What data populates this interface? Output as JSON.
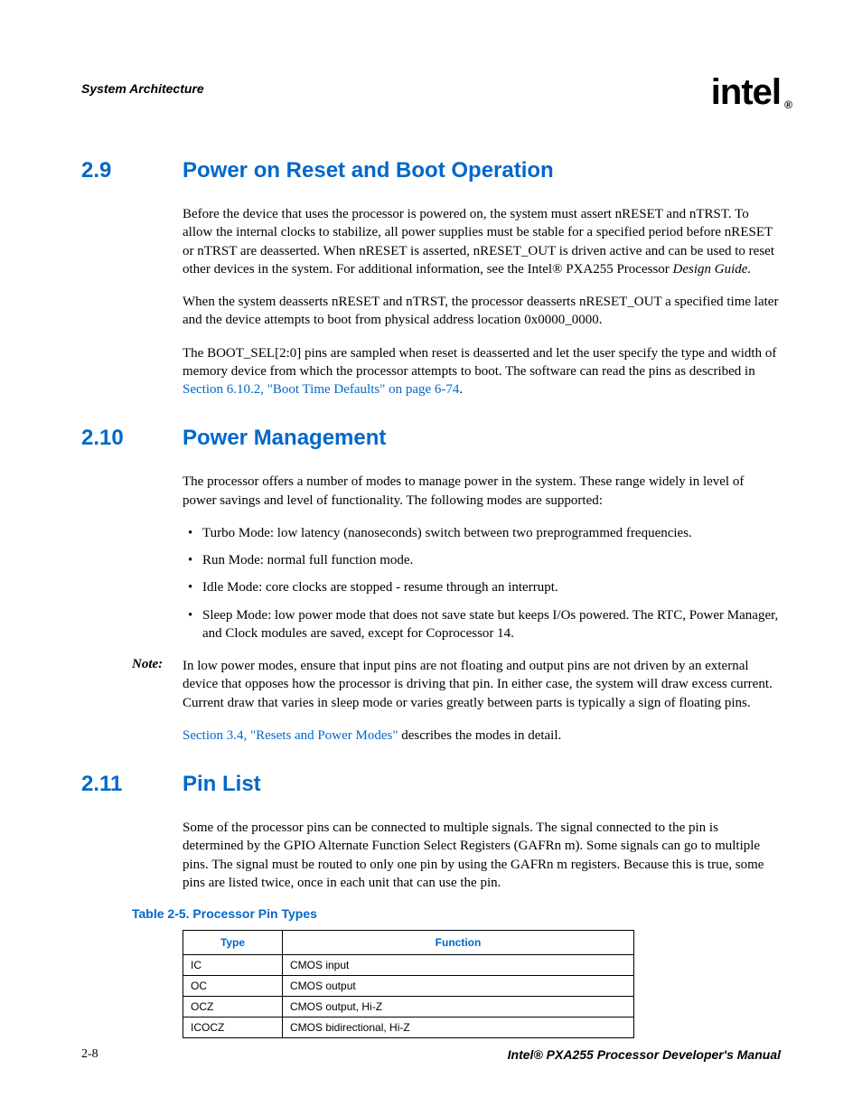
{
  "header": {
    "chapter": "System Architecture",
    "logo_text": "intel",
    "logo_reg": "®"
  },
  "colors": {
    "heading": "#0068c9",
    "text": "#000000",
    "bg": "#ffffff"
  },
  "sections": {
    "s29": {
      "num": "2.9",
      "title": "Power on Reset and Boot Operation",
      "p1a": "Before the device that uses the processor is powered on, the system must assert nRESET and nTRST. To allow the internal clocks to stabilize, all power supplies must be stable for a specified period before nRESET or nTRST are deasserted. When nRESET is asserted, nRESET_OUT is driven active and can be used to reset other devices in the system. For additional information, see the Intel® PXA255 Processor ",
      "p1b_italic": "Design Guide.",
      "p2": "When the system deasserts nRESET and nTRST, the processor deasserts nRESET_OUT a specified time later and the device attempts to boot from physical address location 0x0000_0000.",
      "p3a": "The BOOT_SEL[2:0] pins are sampled when reset is deasserted and let the user specify the type and width of memory device from which the processor attempts to boot. The software can read the pins as described in ",
      "p3_link": "Section 6.10.2, \"Boot Time Defaults\" on page 6-74",
      "p3b": "."
    },
    "s210": {
      "num": "2.10",
      "title": "Power Management",
      "p1": "The processor offers a number of modes to manage power in the system. These range widely in level of power savings and level of functionality. The following modes are supported:",
      "bullets": {
        "b1": "Turbo Mode: low latency (nanoseconds) switch between two preprogrammed frequencies.",
        "b2": "Run Mode: normal full function mode.",
        "b3": "Idle Mode: core clocks are stopped - resume through an interrupt.",
        "b4": "Sleep Mode: low power mode that does not save state but keeps I/Os powered. The RTC, Power Manager, and Clock modules are saved, except for Coprocessor 14."
      },
      "note_label": "Note:",
      "note_body": "In low power modes, ensure that input pins are not floating and output pins are not driven by an external device that opposes how the processor is driving that pin. In either case, the system will draw excess current. Current draw that varies in sleep mode or varies greatly between parts is typically a sign of floating pins.",
      "p2_link": "Section 3.4, \"Resets and Power Modes\"",
      "p2b": " describes the modes in detail."
    },
    "s211": {
      "num": "2.11",
      "title": "Pin List",
      "p1": "Some of the processor pins can be connected to multiple signals. The signal connected to the pin is determined by the GPIO Alternate Function Select Registers (GAFRn m). Some signals can go to multiple pins. The signal must be routed to only one pin by using the GAFRn m registers. Because this is true, some pins are listed twice, once in each unit that can use the pin."
    }
  },
  "table": {
    "caption": "Table 2-5. Processor Pin Types",
    "columns": {
      "c1": "Type",
      "c2": "Function"
    },
    "rows": {
      "r1": {
        "type": "IC",
        "func": "CMOS input"
      },
      "r2": {
        "type": "OC",
        "func": "CMOS output"
      },
      "r3": {
        "type": "OCZ",
        "func": "CMOS output, Hi-Z"
      },
      "r4": {
        "type": "ICOCZ",
        "func": "CMOS bidirectional, Hi-Z"
      }
    }
  },
  "footer": {
    "page": "2-8",
    "doc": "Intel® PXA255 Processor Developer's Manual"
  }
}
